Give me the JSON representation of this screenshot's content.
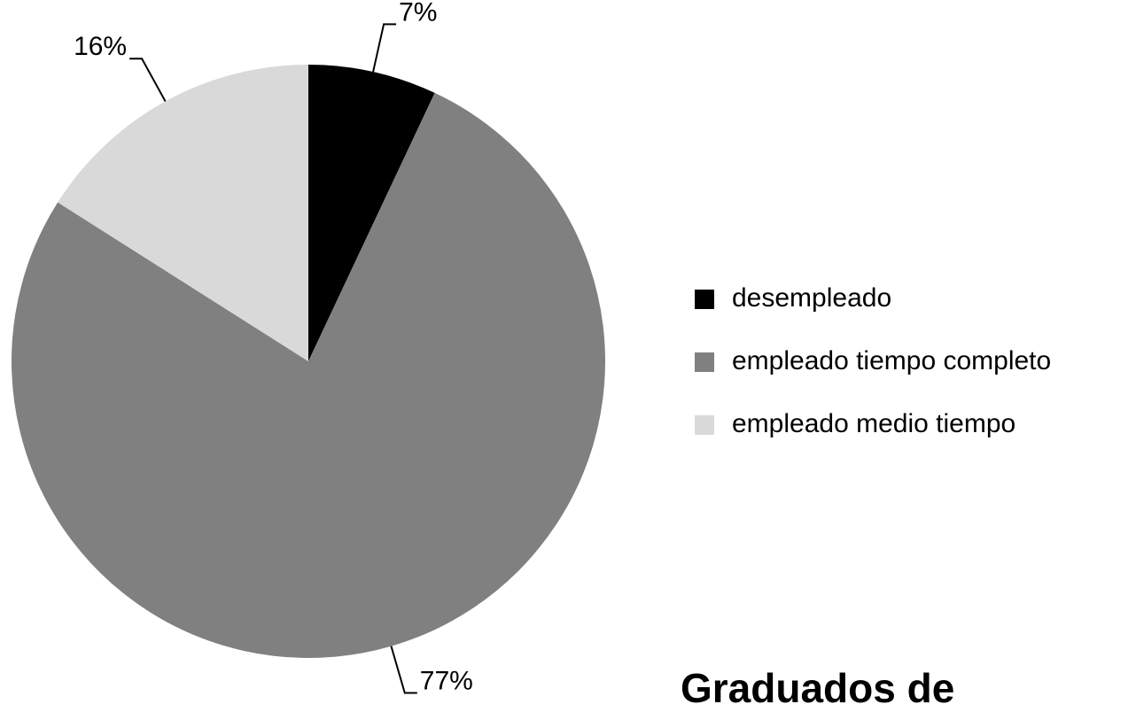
{
  "chart_data": {
    "type": "pie",
    "title": "Graduados de",
    "categories": [
      "desempleado",
      "empleado tiempo completo",
      "empleado medio tiempo"
    ],
    "values": [
      7,
      77,
      16
    ],
    "value_labels": [
      "7%",
      "77%",
      "16%"
    ],
    "colors": [
      "#000000",
      "#808080",
      "#d9d9d9"
    ],
    "legend": "right"
  }
}
